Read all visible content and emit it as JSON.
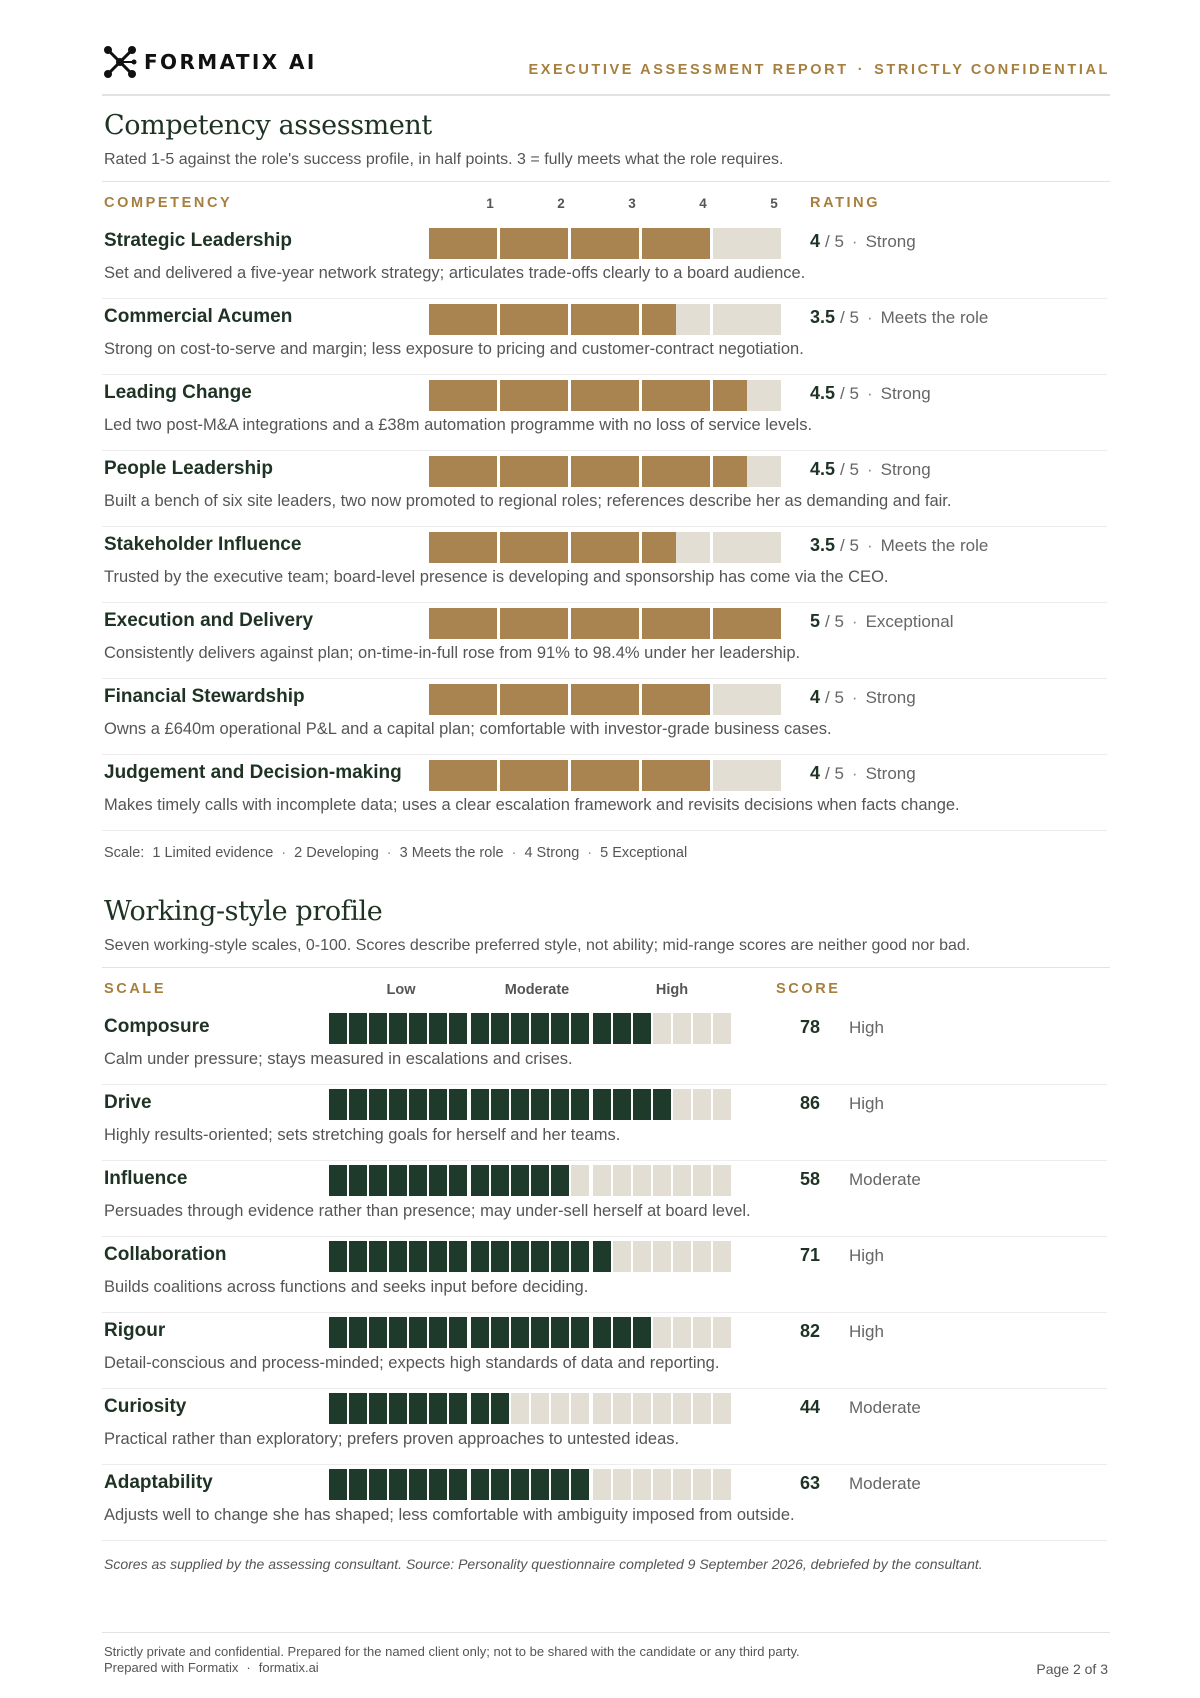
{
  "header": {
    "brand": "FORMATIX AI",
    "report_title": "EXECUTIVE ASSESSMENT REPORT",
    "separator": "·",
    "confidentiality": "STRICTLY CONFIDENTIAL"
  },
  "competency": {
    "title": "Competency assessment",
    "subtitle": "Rated 1-5 against the role's success profile, in half points. 3 = fully meets what the role requires.",
    "col_competency": "COMPETENCY",
    "col_rating": "RATING",
    "ticks": [
      "1",
      "2",
      "3",
      "4",
      "5"
    ],
    "max_label": "/ 5",
    "rows": [
      {
        "name": "Strategic Leadership",
        "score": 4,
        "score_label": "4",
        "level": "Strong",
        "desc": "Set and delivered a five-year network strategy; articulates trade-offs clearly to a board audience."
      },
      {
        "name": "Commercial Acumen",
        "score": 3.5,
        "score_label": "3.5",
        "level": "Meets the role",
        "desc": "Strong on cost-to-serve and margin; less exposure to pricing and customer-contract negotiation."
      },
      {
        "name": "Leading Change",
        "score": 4.5,
        "score_label": "4.5",
        "level": "Strong",
        "desc": "Led two post-M&A integrations and a £38m automation programme with no loss of service levels."
      },
      {
        "name": "People Leadership",
        "score": 4.5,
        "score_label": "4.5",
        "level": "Strong",
        "desc": "Built a bench of six site leaders, two now promoted to regional roles; references describe her as demanding and fair."
      },
      {
        "name": "Stakeholder Influence",
        "score": 3.5,
        "score_label": "3.5",
        "level": "Meets the role",
        "desc": "Trusted by the executive team; board-level presence is developing and sponsorship has come via the CEO."
      },
      {
        "name": "Execution and Delivery",
        "score": 5,
        "score_label": "5",
        "level": "Exceptional",
        "desc": "Consistently delivers against plan; on-time-in-full rose from 91% to 98.4% under her leadership."
      },
      {
        "name": "Financial Stewardship",
        "score": 4,
        "score_label": "4",
        "level": "Strong",
        "desc": "Owns a £640m operational P&L and a capital plan; comfortable with investor-grade business cases."
      },
      {
        "name": "Judgement and Decision-making",
        "score": 4,
        "score_label": "4",
        "level": "Strong",
        "desc": "Makes timely calls with incomplete data; uses a clear escalation framework and revisits decisions when facts change."
      }
    ],
    "scale_prefix": "Scale:",
    "scale_items": [
      "1 Limited evidence",
      "2 Developing",
      "3 Meets the role",
      "4 Strong",
      "5 Exceptional"
    ]
  },
  "working_style": {
    "title": "Working-style profile",
    "subtitle": "Seven working-style scales, 0-100. Scores describe preferred style, not ability; mid-range scores are neither good nor bad.",
    "col_scale": "SCALE",
    "col_score": "SCORE",
    "band_labels": [
      "Low",
      "Moderate",
      "High"
    ],
    "rows": [
      {
        "name": "Composure",
        "score": 78,
        "score_label": "78",
        "level": "High",
        "desc": "Calm under pressure; stays measured in escalations and crises."
      },
      {
        "name": "Drive",
        "score": 86,
        "score_label": "86",
        "level": "High",
        "desc": "Highly results-oriented; sets stretching goals for herself and her teams."
      },
      {
        "name": "Influence",
        "score": 58,
        "score_label": "58",
        "level": "Moderate",
        "desc": "Persuades through evidence rather than presence; may under-sell herself at board level."
      },
      {
        "name": "Collaboration",
        "score": 71,
        "score_label": "71",
        "level": "High",
        "desc": "Builds coalitions across functions and seeks input before deciding."
      },
      {
        "name": "Rigour",
        "score": 82,
        "score_label": "82",
        "level": "High",
        "desc": "Detail-conscious and process-minded; expects high standards of data and reporting."
      },
      {
        "name": "Curiosity",
        "score": 44,
        "score_label": "44",
        "level": "Moderate",
        "desc": "Practical rather than exploratory; prefers proven approaches to untested ideas."
      },
      {
        "name": "Adaptability",
        "score": 63,
        "score_label": "63",
        "level": "Moderate",
        "desc": "Adjusts well to change she has shaped; less comfortable with ambiguity imposed from outside."
      }
    ],
    "source_note": "Scores as supplied by the assessing consultant.  Source: Personality questionnaire completed 9 September 2026, debriefed by the consultant."
  },
  "footer": {
    "disclaimer": "Strictly private and confidential. Prepared for the named client only; not to be shared with the candidate or any third party.",
    "prepared_with": "Prepared with Formatix",
    "site": "formatix.ai",
    "page": "Page 2 of 3"
  },
  "colors": {
    "accent_gold": "#a67f3f",
    "bar_gold": "#aa8450",
    "bar_green": "#1e3a2b",
    "bar_empty": "#e3ded4",
    "heading_green": "#1f3325"
  },
  "icons": {
    "logo": "formatix-molecule-icon"
  }
}
